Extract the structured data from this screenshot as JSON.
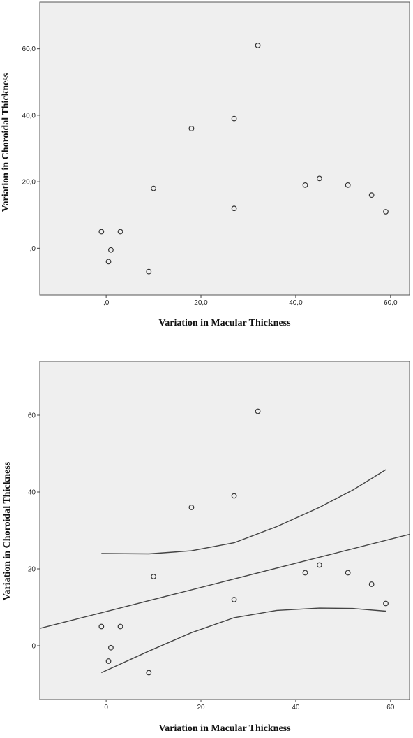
{
  "chart_data": [
    {
      "type": "scatter",
      "title": "",
      "xlabel": "Variation in Macular Thickness",
      "ylabel": "Variation in Choroidal Thickness",
      "xlim": [
        -14,
        64
      ],
      "ylim": [
        -14,
        74
      ],
      "xticks": [
        0,
        20,
        40,
        60
      ],
      "yticks": [
        0,
        20,
        40,
        60
      ],
      "xtick_labels": [
        ",0",
        "20,0",
        "40,0",
        "60,0"
      ],
      "ytick_labels": [
        ",0",
        "20,0",
        "40,0",
        "60,0"
      ],
      "grid": false,
      "series": [
        {
          "x": [
            -1,
            0.5,
            1,
            3,
            9,
            10,
            18,
            27,
            27,
            32,
            42,
            45,
            51,
            56,
            59
          ],
          "y": [
            5,
            -4,
            -0.5,
            5,
            -7,
            18,
            36,
            39,
            12,
            61,
            19,
            21,
            19,
            16,
            11
          ]
        }
      ]
    },
    {
      "type": "scatter",
      "title": "",
      "xlabel": "Variation in Macular Thickness",
      "ylabel": "Variation in Choroidal Thickness",
      "xlim": [
        -14,
        64
      ],
      "ylim": [
        -14,
        74
      ],
      "xticks": [
        0,
        20,
        40,
        60
      ],
      "yticks": [
        0,
        20,
        40,
        60
      ],
      "xtick_labels": [
        "0",
        "20",
        "40",
        "60"
      ],
      "ytick_labels": [
        "0",
        "20",
        "40",
        "60"
      ],
      "grid": false,
      "series": [
        {
          "x": [
            -1,
            0.5,
            1,
            3,
            9,
            10,
            18,
            27,
            27,
            32,
            42,
            45,
            51,
            56,
            59
          ],
          "y": [
            5,
            -4,
            -0.5,
            5,
            -7,
            18,
            36,
            39,
            12,
            61,
            19,
            21,
            19,
            16,
            11
          ]
        }
      ],
      "fit_line": {
        "x": [
          -14,
          64
        ],
        "y": [
          4.5,
          29
        ]
      },
      "confidence_band": {
        "x": [
          -1,
          9,
          18,
          27,
          36,
          45,
          52,
          59
        ],
        "upper": [
          24,
          23.9,
          24.7,
          26.8,
          31,
          36,
          40.5,
          45.8
        ],
        "lower": [
          -7,
          -1.4,
          3.4,
          7.3,
          9.2,
          9.8,
          9.7,
          9.0
        ]
      }
    }
  ]
}
